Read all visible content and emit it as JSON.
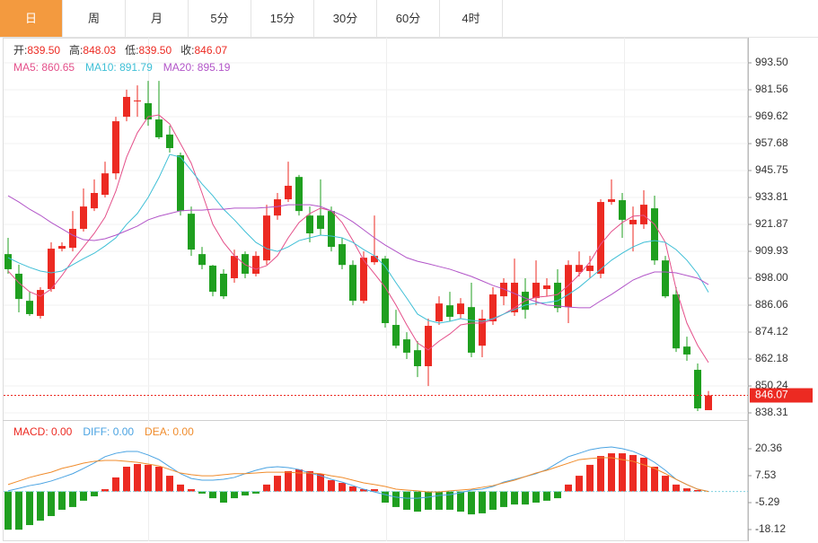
{
  "tabs": [
    "日",
    "周",
    "月",
    "5分",
    "15分",
    "30分",
    "60分",
    "4时"
  ],
  "active_tab": 0,
  "chart_data": [
    {
      "type": "candlestick",
      "info": [
        [
          "开:",
          "839.50"
        ],
        [
          "高:",
          "848.03"
        ],
        [
          "低:",
          "839.50"
        ],
        [
          "收:",
          "846.07"
        ]
      ],
      "up_color": "#ec2a22",
      "down_color": "#1f9f1f",
      "grid": true,
      "ylim": [
        835.13,
        1005.44
      ],
      "yticks": [
        {
          "value": 993.5,
          "label": "993.50"
        },
        981.56,
        969.62,
        957.68,
        945.75,
        933.81,
        921.87,
        909.93,
        {
          "value": 898,
          "label": "898.00"
        },
        886.06,
        874.12,
        862.18,
        850.24,
        838.31
      ],
      "open": [
        908.7,
        900.0,
        888.0,
        881.3,
        893.2,
        911.1,
        911.5,
        919.9,
        929.0,
        935.0,
        944.5,
        969.6,
        976.4,
        975.6,
        968.4,
        961.7,
        952.5,
        926.6,
        908.7,
        903.6,
        900.0,
        898.0,
        908.7,
        900.0,
        905.9,
        925.8,
        933.0,
        942.9,
        925.8,
        925.8,
        927.8,
        913.1,
        903.9,
        888.0,
        905.1,
        906.7,
        877.3,
        870.9,
        866.1,
        859.0,
        878.9,
        886.0,
        882.1,
        885.2,
        868.1,
        878.9,
        890.0,
        882.9,
        892.0,
        889.2,
        893.2,
        896.0,
        885.2,
        900.8,
        901.2,
        900.0,
        931.8,
        932.6,
        921.9,
        921.9,
        929.0,
        905.9,
        890.8,
        867.7,
        857.4,
        839.5
      ],
      "high": [
        915.9,
        904.0,
        892.0,
        894.0,
        913.9,
        913.9,
        927.8,
        937.8,
        941.8,
        949.7,
        969.6,
        981.6,
        983.5,
        985.5,
        985.5,
        965.6,
        953.7,
        929.8,
        911.9,
        903.9,
        902.0,
        910.7,
        909.9,
        909.9,
        930.6,
        935.8,
        949.7,
        943.8,
        929.8,
        941.8,
        929.8,
        915.9,
        905.9,
        909.9,
        925.8,
        907.9,
        884.0,
        874.1,
        870.1,
        880.1,
        890.0,
        892.0,
        889.2,
        896.0,
        884.0,
        894.0,
        898.0,
        906.7,
        898.0,
        905.9,
        898.0,
        902.0,
        905.9,
        909.9,
        907.9,
        933.0,
        941.8,
        935.8,
        929.8,
        937.0,
        934.6,
        907.9,
        894.0,
        872.1,
        860.2,
        848.03
      ],
      "low": [
        900.0,
        882.9,
        881.3,
        880.1,
        892.0,
        909.9,
        909.9,
        918.7,
        927.8,
        933.8,
        941.8,
        967.6,
        969.6,
        965.6,
        959.7,
        953.7,
        925.8,
        907.9,
        902.0,
        890.0,
        888.8,
        896.0,
        898.0,
        898.8,
        903.9,
        923.9,
        931.8,
        925.8,
        913.9,
        917.1,
        909.9,
        902.0,
        886.0,
        886.8,
        903.9,
        876.1,
        866.9,
        862.2,
        854.2,
        850.2,
        877.3,
        878.9,
        880.1,
        863.0,
        863.0,
        877.3,
        886.0,
        881.3,
        880.1,
        886.0,
        890.0,
        882.9,
        878.1,
        898.8,
        898.0,
        898.0,
        930.6,
        915.9,
        909.9,
        919.9,
        903.9,
        889.2,
        865.3,
        861.4,
        839.1,
        839.5
      ],
      "close": [
        902.0,
        888.8,
        882.1,
        892.8,
        911.1,
        912.3,
        919.9,
        929.8,
        935.8,
        944.5,
        967.6,
        978.4,
        976.8,
        968.4,
        960.5,
        955.7,
        927.8,
        910.7,
        903.9,
        892.0,
        890.0,
        907.9,
        900.0,
        907.9,
        925.8,
        933.0,
        939.0,
        927.8,
        917.9,
        919.9,
        911.9,
        903.9,
        888.0,
        907.1,
        907.9,
        878.1,
        868.1,
        865.0,
        859.0,
        876.9,
        886.8,
        880.9,
        886.8,
        865.0,
        880.1,
        890.8,
        896.0,
        896.0,
        884.0,
        896.0,
        894.8,
        884.8,
        903.9,
        903.9,
        903.6,
        931.8,
        933.0,
        923.9,
        923.9,
        930.6,
        905.9,
        890.0,
        866.9,
        864.2,
        840.3,
        846.07
      ],
      "series": [
        {
          "name": "MA5: 860.65",
          "color": "#e4508a",
          "values": [
            901.2,
            896.0,
            892.0,
            890.0,
            893.2,
            899.2,
            906.0,
            911.9,
            917.9,
            925.1,
            936.6,
            951.7,
            962.5,
            969.6,
            970.4,
            966.4,
            957.7,
            949.0,
            935.8,
            921.9,
            913.9,
            908.0,
            904.0,
            902.0,
            903.6,
            908.0,
            915.9,
            922.7,
            926.7,
            929.1,
            927.9,
            922.7,
            914.7,
            906.0,
            900.0,
            894.0,
            886.1,
            877.3,
            869.3,
            866.2,
            870.1,
            873.3,
            877.3,
            878.1,
            878.1,
            879.7,
            882.1,
            884.9,
            888.0,
            889.6,
            890.0,
            890.8,
            894.8,
            899.6,
            905.2,
            913.1,
            918.7,
            922.7,
            925.5,
            925.9,
            921.9,
            913.9,
            893.2,
            878.1,
            868.2,
            860.65
          ]
        },
        {
          "name": "MA10: 891.79",
          "color": "#3fbfd6",
          "values": [
            907.1,
            904.8,
            902.8,
            901.2,
            900.4,
            901.2,
            904.0,
            906.7,
            909.1,
            912.3,
            915.9,
            921.9,
            926.7,
            933.8,
            942.6,
            952.9,
            951.7,
            945.8,
            939.8,
            934.6,
            928.6,
            923.9,
            918.7,
            913.9,
            911.1,
            909.9,
            911.9,
            914.7,
            915.9,
            917.1,
            916.7,
            915.9,
            913.9,
            910.7,
            908.0,
            903.2,
            896.0,
            889.2,
            882.1,
            879.3,
            878.1,
            878.9,
            880.1,
            879.3,
            878.9,
            880.1,
            882.1,
            884.1,
            886.1,
            886.9,
            887.2,
            888.0,
            890.8,
            894.0,
            898.0,
            902.0,
            906.0,
            909.1,
            911.9,
            913.9,
            914.7,
            913.9,
            910.7,
            906.0,
            900.0,
            891.79
          ]
        },
        {
          "name": "MA20: 895.19",
          "color": "#b255c8",
          "values": [
            934.6,
            931.8,
            928.6,
            925.9,
            922.7,
            919.9,
            917.1,
            915.1,
            914.7,
            915.5,
            917.1,
            919.1,
            921.1,
            923.9,
            925.5,
            926.7,
            927.9,
            928.2,
            928.2,
            928.6,
            928.6,
            929.1,
            929.1,
            929.1,
            929.4,
            929.8,
            930.6,
            930.6,
            930.6,
            929.8,
            927.9,
            925.9,
            923.0,
            919.5,
            915.9,
            912.7,
            909.9,
            907.1,
            905.5,
            904.4,
            903.2,
            902.0,
            900.4,
            898.8,
            896.8,
            894.8,
            893.2,
            891.2,
            889.2,
            887.6,
            886.1,
            885.7,
            885.2,
            884.9,
            884.9,
            888.0,
            890.8,
            894.0,
            897.2,
            899.2,
            900.8,
            900.8,
            900.4,
            899.2,
            898.0,
            895.19
          ]
        }
      ]
    },
    {
      "type": "macd",
      "up_color": "#ec2a22",
      "down_color": "#1f9f1f",
      "grid": false,
      "ylim": [
        -22.4,
        33.19
      ],
      "yticks": [
        20.36,
        7.53,
        -5.29,
        -18.12
      ],
      "histogram": {
        "name": "MACD: 0.00",
        "color": "#ec2a22",
        "values": [
          -18.2,
          -18.2,
          -16.0,
          -13.9,
          -11.7,
          -8.7,
          -7.4,
          -4.4,
          -2.3,
          1.1,
          6.7,
          11.8,
          13.1,
          12.7,
          11.8,
          7.5,
          3.3,
          1.1,
          -1.0,
          -3.2,
          -5.3,
          -3.2,
          -1.9,
          -1.0,
          3.3,
          7.5,
          9.7,
          10.5,
          9.7,
          8.4,
          5.4,
          4.1,
          2.4,
          1.1,
          1.1,
          -5.3,
          -7.4,
          -8.7,
          -9.6,
          -8.7,
          -8.7,
          -8.7,
          -9.6,
          -10.9,
          -10.4,
          -8.7,
          -7.4,
          -6.2,
          -6.2,
          -5.3,
          -4.4,
          -3.2,
          3.3,
          7.5,
          12.7,
          16.9,
          18.2,
          18.2,
          17.4,
          16.1,
          11.8,
          7.5,
          3.3,
          1.5,
          0.7,
          0
        ]
      },
      "series": [
        {
          "name": "DIFF: 0.00",
          "color": "#4aa3e2",
          "values": [
            0.3,
            1.5,
            2.8,
            3.7,
            5.0,
            6.7,
            8.5,
            11.0,
            13.6,
            16.6,
            18.2,
            19.1,
            19.1,
            17.4,
            15.2,
            11.8,
            8.5,
            6.2,
            5.4,
            5.4,
            5.8,
            6.7,
            8.5,
            10.1,
            11.4,
            11.8,
            11.4,
            10.5,
            8.8,
            7.5,
            5.8,
            4.5,
            2.8,
            1.1,
            -0.2,
            -1.5,
            -2.7,
            -3.2,
            -3.2,
            -2.7,
            -1.9,
            -1.5,
            -0.6,
            0.7,
            1.1,
            2.4,
            4.5,
            5.8,
            7.1,
            8.5,
            10.5,
            13.6,
            16.6,
            18.2,
            19.9,
            20.8,
            21.2,
            20.4,
            19.1,
            16.9,
            13.9,
            10.1,
            5.8,
            3.3,
            1.1,
            0
          ]
        },
        {
          "name": "DEA: 0.00",
          "color": "#f08c2c",
          "values": [
            3.3,
            5.0,
            6.7,
            8.0,
            9.2,
            11.0,
            12.2,
            13.5,
            14.4,
            14.8,
            14.8,
            14.4,
            13.9,
            13.1,
            12.2,
            10.5,
            8.8,
            8.0,
            7.5,
            7.5,
            8.0,
            8.5,
            8.5,
            8.8,
            9.2,
            9.2,
            9.2,
            8.8,
            8.8,
            8.5,
            7.5,
            6.7,
            5.4,
            4.1,
            3.3,
            2.4,
            1.1,
            0.7,
            0.3,
            -0.2,
            -0.2,
            0.3,
            0.7,
            1.1,
            2.0,
            2.8,
            4.1,
            5.4,
            7.1,
            8.8,
            10.1,
            11.8,
            13.5,
            15.2,
            15.7,
            16.1,
            16.1,
            15.2,
            14.4,
            12.7,
            11.0,
            8.5,
            5.8,
            3.3,
            1.1,
            0
          ]
        }
      ]
    }
  ]
}
